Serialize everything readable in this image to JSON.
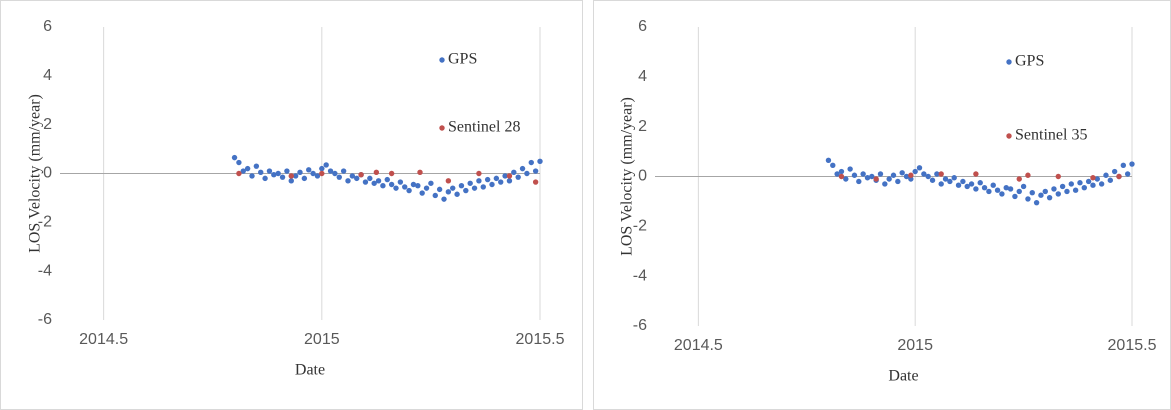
{
  "chart_data": [
    {
      "type": "scatter",
      "y_label": "LOS Velocity (mm/year)",
      "x_label": "Date",
      "xlim": [
        2014.4,
        2015.5
      ],
      "xticks": [
        2014.5,
        2015,
        2015.5
      ],
      "ylim": [
        -6,
        6
      ],
      "yticks": [
        -6,
        -4,
        -2,
        0,
        2,
        4,
        6
      ],
      "series": [
        {
          "name": "GPS",
          "color": "#4472c4",
          "x": [
            2014.8,
            2014.81,
            2014.82,
            2014.83,
            2014.84,
            2014.85,
            2014.86,
            2014.87,
            2014.88,
            2014.89,
            2014.9,
            2014.91,
            2014.92,
            2014.93,
            2014.94,
            2014.95,
            2014.96,
            2014.97,
            2014.98,
            2014.99,
            2015.0,
            2015.01,
            2015.02,
            2015.03,
            2015.04,
            2015.05,
            2015.06,
            2015.07,
            2015.08,
            2015.09,
            2015.1,
            2015.11,
            2015.12,
            2015.13,
            2015.14,
            2015.15,
            2015.16,
            2015.17,
            2015.18,
            2015.19,
            2015.2,
            2015.21,
            2015.22,
            2015.23,
            2015.24,
            2015.25,
            2015.26,
            2015.27,
            2015.28,
            2015.29,
            2015.3,
            2015.31,
            2015.32,
            2015.33,
            2015.34,
            2015.35,
            2015.36,
            2015.37,
            2015.38,
            2015.39,
            2015.4,
            2015.41,
            2015.42,
            2015.43,
            2015.44,
            2015.45,
            2015.46,
            2015.47,
            2015.48,
            2015.49,
            2015.5
          ],
          "values": [
            0.65,
            0.45,
            0.1,
            0.2,
            -0.1,
            0.3,
            0.05,
            -0.2,
            0.1,
            -0.05,
            0.0,
            -0.15,
            0.1,
            -0.3,
            -0.1,
            0.05,
            -0.2,
            0.15,
            0.0,
            -0.1,
            0.2,
            0.35,
            0.1,
            0.0,
            -0.15,
            0.1,
            -0.3,
            -0.1,
            -0.2,
            -0.05,
            -0.35,
            -0.2,
            -0.4,
            -0.3,
            -0.5,
            -0.25,
            -0.45,
            -0.6,
            -0.35,
            -0.55,
            -0.7,
            -0.45,
            -0.5,
            -0.8,
            -0.6,
            -0.4,
            -0.9,
            -0.65,
            -1.05,
            -0.75,
            -0.6,
            -0.85,
            -0.5,
            -0.7,
            -0.4,
            -0.6,
            -0.3,
            -0.55,
            -0.25,
            -0.45,
            -0.2,
            -0.35,
            -0.1,
            -0.3,
            0.05,
            -0.15,
            0.2,
            0.0,
            0.45,
            0.1,
            0.5
          ]
        },
        {
          "name": "Sentinel 28",
          "color": "#c0504d",
          "x": [
            2014.81,
            2014.93,
            2015.0,
            2015.09,
            2015.125,
            2015.16,
            2015.225,
            2015.29,
            2015.36,
            2015.43,
            2015.49
          ],
          "values": [
            0.0,
            -0.1,
            0.0,
            -0.05,
            0.05,
            0.0,
            0.05,
            -0.3,
            0.0,
            -0.1,
            -0.35
          ]
        }
      ]
    },
    {
      "type": "scatter",
      "y_label": "LOS Velocity (mm/year)",
      "x_label": "Date",
      "xlim": [
        2014.4,
        2015.5
      ],
      "xticks": [
        2014.5,
        2015,
        2015.5
      ],
      "ylim": [
        -6,
        6
      ],
      "yticks": [
        -6,
        -4,
        -2,
        0,
        2,
        4,
        6
      ],
      "series": [
        {
          "name": "GPS",
          "color": "#4472c4",
          "x": [
            2014.8,
            2014.81,
            2014.82,
            2014.83,
            2014.84,
            2014.85,
            2014.86,
            2014.87,
            2014.88,
            2014.89,
            2014.9,
            2014.91,
            2014.92,
            2014.93,
            2014.94,
            2014.95,
            2014.96,
            2014.97,
            2014.98,
            2014.99,
            2015.0,
            2015.01,
            2015.02,
            2015.03,
            2015.04,
            2015.05,
            2015.06,
            2015.07,
            2015.08,
            2015.09,
            2015.1,
            2015.11,
            2015.12,
            2015.13,
            2015.14,
            2015.15,
            2015.16,
            2015.17,
            2015.18,
            2015.19,
            2015.2,
            2015.21,
            2015.22,
            2015.23,
            2015.24,
            2015.25,
            2015.26,
            2015.27,
            2015.28,
            2015.29,
            2015.3,
            2015.31,
            2015.32,
            2015.33,
            2015.34,
            2015.35,
            2015.36,
            2015.37,
            2015.38,
            2015.39,
            2015.4,
            2015.41,
            2015.42,
            2015.43,
            2015.44,
            2015.45,
            2015.46,
            2015.47,
            2015.48,
            2015.49,
            2015.5
          ],
          "values": [
            0.65,
            0.45,
            0.1,
            0.2,
            -0.1,
            0.3,
            0.05,
            -0.2,
            0.1,
            -0.05,
            0.0,
            -0.15,
            0.1,
            -0.3,
            -0.1,
            0.05,
            -0.2,
            0.15,
            0.0,
            -0.1,
            0.2,
            0.35,
            0.1,
            0.0,
            -0.15,
            0.1,
            -0.3,
            -0.1,
            -0.2,
            -0.05,
            -0.35,
            -0.2,
            -0.4,
            -0.3,
            -0.5,
            -0.25,
            -0.45,
            -0.6,
            -0.35,
            -0.55,
            -0.7,
            -0.45,
            -0.5,
            -0.8,
            -0.6,
            -0.4,
            -0.9,
            -0.65,
            -1.05,
            -0.75,
            -0.6,
            -0.85,
            -0.5,
            -0.7,
            -0.4,
            -0.6,
            -0.3,
            -0.55,
            -0.25,
            -0.45,
            -0.2,
            -0.35,
            -0.1,
            -0.3,
            0.05,
            -0.15,
            0.2,
            0.0,
            0.45,
            0.1,
            0.5
          ]
        },
        {
          "name": "Sentinel 35",
          "color": "#c0504d",
          "x": [
            2014.83,
            2014.91,
            2014.99,
            2015.06,
            2015.14,
            2015.24,
            2015.26,
            2015.33,
            2015.41,
            2015.47
          ],
          "values": [
            0.0,
            -0.1,
            0.05,
            0.1,
            0.1,
            -0.1,
            0.05,
            0.0,
            -0.05,
            0.0
          ]
        }
      ]
    }
  ]
}
